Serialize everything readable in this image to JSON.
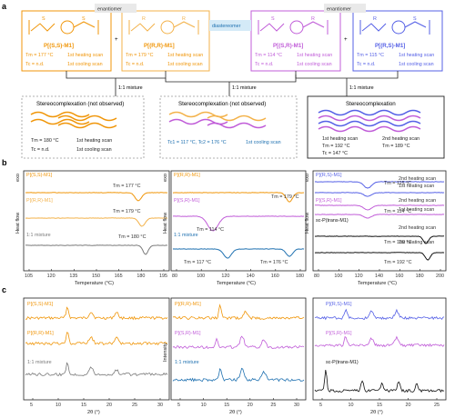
{
  "panel_labels": [
    "a",
    "b",
    "c"
  ],
  "colors": {
    "orange": "#F0960A",
    "orange_light": "#F3B24A",
    "violet": "#C05CD8",
    "blue": "#5560E6",
    "blue_dark": "#1E70B0",
    "grey": "#7A7A7A",
    "black": "#111111"
  },
  "schemes": {
    "relations": {
      "enantiomer_left": "enantiomer",
      "diastereomer": "diastereomer",
      "enantiomer_right": "enantiomer"
    },
    "plus": "+",
    "boxes": [
      {
        "name": "P[(S,S)-M1]",
        "tm_line": "Tm = 177 °C",
        "tm_note": "1st heating scan",
        "tc_line": "Tc = n.d.",
        "tc_note": "1st cooling scan",
        "stereo": [
          "S",
          "S"
        ],
        "color": "orange"
      },
      {
        "name": "P[(R,R)-M1]",
        "tm_line": "Tm = 179 °C",
        "tm_note": "1st heating scan",
        "tc_line": "Tc = n.d.",
        "tc_note": "1st cooling scan",
        "stereo": [
          "R",
          "R"
        ],
        "color": "orange"
      },
      {
        "name": "P[(S,R)-M1]",
        "tm_line": "Tm = 114 °C",
        "tm_note": "1st heating scan",
        "tc_line": "Tc = n.d.",
        "tc_note": "1st cooling scan",
        "stereo": [
          "S",
          "R"
        ],
        "color": "violet"
      },
      {
        "name": "P[(R,S)-M1]",
        "tm_line": "Tm = 115 °C",
        "tm_note": "1st heating scan",
        "tc_line": "Tc = n.d.",
        "tc_note": "1st cooling scan",
        "stereo": [
          "R",
          "S"
        ],
        "color": "blue"
      }
    ],
    "mixture_label": "1:1 mixture",
    "outcomes": [
      {
        "title": "Stereocomplexation (not observed)",
        "l1": "Tm = 180 °C",
        "n1": "1st heating scan",
        "l2": "Tc = n.d.",
        "n2": "1st cooling scan"
      },
      {
        "title": "Stereocomplexation (not observed)",
        "l1": "Tc1 = 117 °C, Tc2 = 176 °C",
        "n1": "1st cooling scan"
      },
      {
        "title": "Stereocomplexation",
        "h1": "1st heating scan",
        "h2": "2nd heating scan",
        "l1": "Tm = 192 °C",
        "l1b": "Tm = 189 °C",
        "l2": "Tc = 147 °C"
      }
    ]
  },
  "dsc": {
    "exo_label": "exo",
    "ylabel": "Heat flow",
    "xlabel": "Temperature (°C)",
    "panels": [
      {
        "xticks": [
          "105",
          "120",
          "135",
          "150",
          "165",
          "180",
          "195"
        ],
        "labels": [
          {
            "text": "P[(S,S)-M1]",
            "color": "orange"
          },
          {
            "text": "P[(R,R)-M1]",
            "color": "orange_light"
          },
          {
            "text": "1:1 mixture",
            "color": "grey"
          }
        ],
        "peaks": [
          "Tm = 177 °C",
          "Tm = 179 °C",
          "Tm = 180 °C"
        ]
      },
      {
        "xticks": [
          "80",
          "100",
          "120",
          "140",
          "160",
          "180"
        ],
        "labels": [
          {
            "text": "P[(R,R)-M1]",
            "color": "orange"
          },
          {
            "text": "P[(S,R)-M1]",
            "color": "violet"
          },
          {
            "text": "1:1 mixture",
            "color": "blue_dark"
          }
        ],
        "peaks": [
          "Tm = 179 °C",
          "Tm = 114 °C",
          "Tm = 117 °C",
          "Tm = 176 °C"
        ]
      },
      {
        "xticks": [
          "80",
          "100",
          "120",
          "140",
          "160",
          "180",
          "200"
        ],
        "labels": [
          {
            "text": "P[(R,S)-M1]",
            "color": "blue"
          },
          {
            "text": "P[(S,R)-M1]",
            "color": "violet"
          },
          {
            "text": "sc-P(trans-M1)",
            "color": "black"
          }
        ],
        "notes": [
          "2nd heating scan",
          "1st heating scan",
          "2nd heating scan",
          "1st heating scan",
          "2nd heating scan",
          "1st heating scan"
        ],
        "peaks": [
          "Tm = 115 °C",
          "Tm = 114 °C",
          "Tm = 189 °C",
          "Tm = 192 °C"
        ]
      }
    ]
  },
  "xrd": {
    "ylabel": "Intensity",
    "xlabel": "2θ (°)",
    "panels": [
      {
        "xticks": [
          "5",
          "10",
          "15",
          "20",
          "25",
          "30"
        ],
        "labels": [
          {
            "text": "P[(S,S)-M1]",
            "color": "orange"
          },
          {
            "text": "P[(R,R)-M1]",
            "color": "orange"
          },
          {
            "text": "1:1 mixture",
            "color": "grey"
          }
        ]
      },
      {
        "xticks": [
          "5",
          "10",
          "15",
          "20",
          "25",
          "30"
        ],
        "labels": [
          {
            "text": "P[(R,R)-M1]",
            "color": "orange"
          },
          {
            "text": "P[(S,R)-M1]",
            "color": "violet"
          },
          {
            "text": "1:1 mixture",
            "color": "blue_dark"
          }
        ]
      },
      {
        "xticks": [
          "5",
          "10",
          "15",
          "20",
          "25"
        ],
        "labels": [
          {
            "text": "P[(R,S)-M1]",
            "color": "blue"
          },
          {
            "text": "P[(S,R)-M1]",
            "color": "violet"
          },
          {
            "text": "sc-P(trans-M1)",
            "color": "black"
          }
        ]
      }
    ]
  }
}
